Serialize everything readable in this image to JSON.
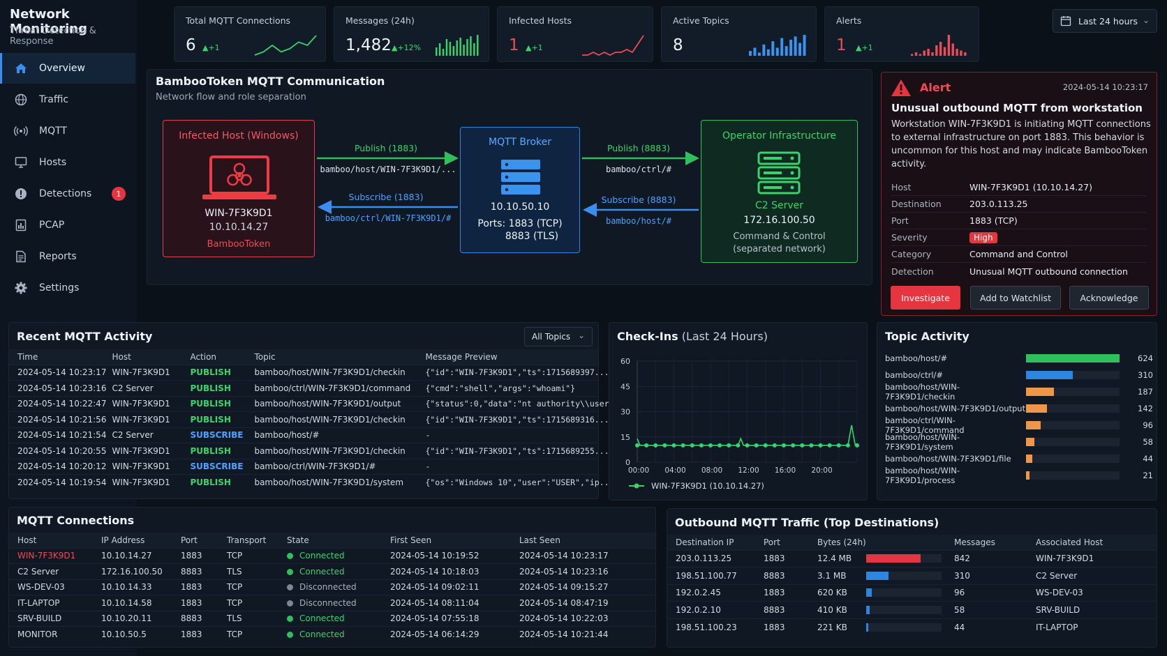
{
  "app": {
    "title": "Network Monitoring",
    "subtitle": "Threat Detection & Response"
  },
  "nav": [
    {
      "label": "Overview",
      "icon": "home-icon",
      "active": true
    },
    {
      "label": "Traffic",
      "icon": "globe-icon"
    },
    {
      "label": "MQTT",
      "icon": "broadcast-icon"
    },
    {
      "label": "Hosts",
      "icon": "monitor-icon"
    },
    {
      "label": "Detections",
      "icon": "exclamation-icon",
      "badge": "1"
    },
    {
      "label": "PCAP",
      "icon": "pcap-file-icon"
    },
    {
      "label": "Reports",
      "icon": "report-icon"
    },
    {
      "label": "Settings",
      "icon": "gear-icon"
    }
  ],
  "kpis": [
    {
      "label": "Total MQTT Connections",
      "value": "6",
      "delta": "▲+1",
      "spark": "line-green",
      "spark_values": [
        2,
        3,
        5,
        3,
        4,
        6,
        5,
        8
      ]
    },
    {
      "label": "Messages (24h)",
      "value": "1,482",
      "delta": "▲+12%",
      "spark": "bars-green",
      "spark_values": [
        6,
        9,
        5,
        12,
        10,
        7,
        11,
        13,
        8,
        12,
        14,
        9,
        15
      ]
    },
    {
      "label": "Infected Hosts",
      "value": "1",
      "delta": "▲+1",
      "spark": "line-red",
      "spark_values": [
        1,
        1,
        2,
        1,
        2,
        1,
        2,
        2,
        3,
        2,
        5,
        8
      ]
    },
    {
      "label": "Active Topics",
      "value": "8",
      "delta": "",
      "spark": "bars-blue",
      "spark_values": [
        3,
        5,
        2,
        7,
        4,
        9,
        5,
        11,
        6,
        10,
        12,
        8,
        13
      ]
    },
    {
      "label": "Alerts",
      "value": "1",
      "delta": "▲+1",
      "spark": "bars-red",
      "spark_values": [
        1,
        2,
        1,
        3,
        4,
        2,
        6,
        8,
        5,
        12,
        7,
        4,
        3,
        2
      ]
    }
  ],
  "time_range": {
    "label": "Last 24 hours"
  },
  "diagram": {
    "title": "BambooToken MQTT Communication",
    "subtitle": "Network flow and role separation",
    "infected": {
      "title": "Infected Host (Windows)",
      "name": "WIN-7F3K9D1",
      "ip": "10.10.14.27",
      "tag": "BambooToken"
    },
    "broker": {
      "title": "MQTT Broker",
      "ip": "10.10.50.10",
      "ports1": "Ports: 1883 (TCP)",
      "ports2": "8883 (TLS)"
    },
    "operator": {
      "title": "Operator Infrastructure",
      "name": "C2 Server",
      "ip": "172.16.100.50",
      "role1": "Command & Control",
      "role2": "(separated network)"
    },
    "flows": {
      "pub1": {
        "label": "Publish (1883)",
        "topic": "bamboo/host/WIN-7F3K9D1/..."
      },
      "sub1": {
        "label": "Subscribe (1883)",
        "topic": "bamboo/ctrl/WIN-7F3K9D1/#"
      },
      "pub2": {
        "label": "Publish (8883)",
        "topic": "bamboo/ctrl/#"
      },
      "sub2": {
        "label": "Subscribe (8883)",
        "topic": "bamboo/host/#"
      }
    }
  },
  "alert": {
    "label": "Alert",
    "time": "2024-05-14 10:23:17",
    "headline": "Unusual outbound MQTT from workstation",
    "desc_lines": [
      "Workstation WIN-7F3K9D1 is initiating MQTT connections",
      "to external infrastructure on port 1883. This behavior is",
      "uncommon for this host and may indicate BambooToken",
      "activity."
    ],
    "fields": [
      {
        "k": "Host",
        "v": "WIN-7F3K9D1 (10.10.14.27)"
      },
      {
        "k": "Destination",
        "v": "203.0.113.25"
      },
      {
        "k": "Port",
        "v": "1883 (TCP)"
      },
      {
        "k": "Severity",
        "v": "High"
      },
      {
        "k": "Category",
        "v": "Command and Control"
      },
      {
        "k": "Detection",
        "v": "Unusual MQTT outbound connection"
      }
    ],
    "actions": {
      "investigate": "Investigate",
      "watch": "Add to Watchlist",
      "ack": "Acknowledge"
    }
  },
  "activity": {
    "title": "Recent MQTT Activity",
    "filter": "All Topics",
    "columns": [
      "Time",
      "Host",
      "Action",
      "Topic",
      "Message Preview"
    ],
    "rows": [
      [
        "2024-05-14 10:23:17",
        "WIN-7F3K9D1",
        "PUBLISH",
        "bamboo/host/WIN-7F3K9D1/checkin",
        "{\"id\":\"WIN-7F3K9D1\",\"ts\":1715689397..."
      ],
      [
        "2024-05-14 10:23:16",
        "C2 Server",
        "PUBLISH",
        "bamboo/ctrl/WIN-7F3K9D1/command",
        "{\"cmd\":\"shell\",\"args\":\"whoami\"}"
      ],
      [
        "2024-05-14 10:22:47",
        "WIN-7F3K9D1",
        "PUBLISH",
        "bamboo/host/WIN-7F3K9D1/output",
        "{\"status\":0,\"data\":\"nt authority\\\\user..."
      ],
      [
        "2024-05-14 10:21:56",
        "WIN-7F3K9D1",
        "PUBLISH",
        "bamboo/host/WIN-7F3K9D1/checkin",
        "{\"id\":\"WIN-7F3K9D1\",\"ts\":1715689316..."
      ],
      [
        "2024-05-14 10:21:54",
        "C2 Server",
        "SUBSCRIBE",
        "bamboo/host/#",
        "-"
      ],
      [
        "2024-05-14 10:20:55",
        "WIN-7F3K9D1",
        "PUBLISH",
        "bamboo/host/WIN-7F3K9D1/checkin",
        "{\"id\":\"WIN-7F3K9D1\",\"ts\":1715689255..."
      ],
      [
        "2024-05-14 10:20:12",
        "WIN-7F3K9D1",
        "SUBSCRIBE",
        "bamboo/ctrl/WIN-7F3K9D1/#",
        "-"
      ],
      [
        "2024-05-14 10:19:54",
        "WIN-7F3K9D1",
        "PUBLISH",
        "bamboo/host/WIN-7F3K9D1/system",
        "{\"os\":\"Windows 10\",\"user\":\"USER\",\"ip..."
      ]
    ]
  },
  "checkins": {
    "title": "Check-Ins",
    "title_suffix": "(Last 24 Hours)"
  },
  "chart_data": {
    "type": "line",
    "title": "Check-Ins (Last 24 Hours)",
    "xlabel": "",
    "ylabel": "",
    "x_ticks": [
      "00:00",
      "04:00",
      "08:00",
      "12:00",
      "16:00",
      "20:00"
    ],
    "y_ticks": [
      0,
      15,
      30,
      45,
      60
    ],
    "ylim": [
      0,
      60
    ],
    "xlim": [
      0,
      24
    ],
    "series": [
      {
        "name": "WIN-7F3K9D1 (10.10.14.27)",
        "color": "#3ad46c",
        "points": [
          [
            0,
            14
          ],
          [
            0.3,
            10
          ],
          [
            1,
            10
          ],
          [
            2,
            10
          ],
          [
            3,
            10
          ],
          [
            4,
            10
          ],
          [
            5,
            10
          ],
          [
            6,
            10
          ],
          [
            7,
            10
          ],
          [
            8,
            10
          ],
          [
            9,
            10
          ],
          [
            10,
            10
          ],
          [
            11,
            10
          ],
          [
            11.3,
            14
          ],
          [
            11.6,
            10
          ],
          [
            12,
            10
          ],
          [
            13,
            10
          ],
          [
            14,
            10
          ],
          [
            15,
            10
          ],
          [
            16,
            10
          ],
          [
            17,
            10
          ],
          [
            18,
            10
          ],
          [
            19,
            10
          ],
          [
            20,
            10
          ],
          [
            21,
            10
          ],
          [
            22,
            10
          ],
          [
            23,
            10
          ],
          [
            23.4,
            22
          ],
          [
            23.8,
            10
          ],
          [
            24,
            10
          ]
        ],
        "markers": [
          0,
          1,
          2,
          3,
          4,
          5,
          6,
          7,
          8,
          9,
          10,
          11,
          12,
          13,
          14,
          15,
          16,
          17,
          18,
          19,
          20,
          21,
          22,
          23,
          24
        ]
      }
    ],
    "grid": true,
    "legend": "bottom-left"
  },
  "topics": {
    "title": "Topic Activity",
    "items": [
      {
        "name": "bamboo/host/#",
        "count": 624,
        "color": "#2fbf5d"
      },
      {
        "name": "bamboo/ctrl/#",
        "count": 310,
        "color": "#2f86e0"
      },
      {
        "name": "bamboo/host/WIN-7F3K9D1/checkin",
        "count": 187,
        "color": "#f0964a"
      },
      {
        "name": "bamboo/host/WIN-7F3K9D1/output",
        "count": 142,
        "color": "#f0964a"
      },
      {
        "name": "bamboo/ctrl/WIN-7F3K9D1/command",
        "count": 96,
        "color": "#f0964a"
      },
      {
        "name": "bamboo/host/WIN-7F3K9D1/system",
        "count": 58,
        "color": "#f0964a"
      },
      {
        "name": "bamboo/host/WIN-7F3K9D1/file",
        "count": 44,
        "color": "#f0964a"
      },
      {
        "name": "bamboo/host/WIN-7F3K9D1/process",
        "count": 21,
        "color": "#f0964a"
      }
    ],
    "max": 624
  },
  "connections": {
    "title": "MQTT Connections",
    "columns": [
      "Host",
      "IP Address",
      "Port",
      "Transport",
      "State",
      "First Seen",
      "Last Seen"
    ],
    "rows": [
      {
        "host": "WIN-7F3K9D1",
        "ip": "10.10.14.27",
        "port": "1883",
        "transport": "TCP",
        "state": "Connected",
        "first": "2024-05-14 10:19:52",
        "last": "2024-05-14 10:23:17",
        "flag": true
      },
      {
        "host": "C2 Server",
        "ip": "172.16.100.50",
        "port": "8883",
        "transport": "TLS",
        "state": "Connected",
        "first": "2024-05-14 10:18:03",
        "last": "2024-05-14 10:23:16"
      },
      {
        "host": "WS-DEV-03",
        "ip": "10.10.14.33",
        "port": "1883",
        "transport": "TCP",
        "state": "Disconnected",
        "first": "2024-05-14 09:02:11",
        "last": "2024-05-14 09:15:27"
      },
      {
        "host": "IT-LAPTOP",
        "ip": "10.10.14.58",
        "port": "1883",
        "transport": "TCP",
        "state": "Disconnected",
        "first": "2024-05-14 08:11:04",
        "last": "2024-05-14 08:47:19"
      },
      {
        "host": "SRV-BUILD",
        "ip": "10.10.20.11",
        "port": "8883",
        "transport": "TLS",
        "state": "Connected",
        "first": "2024-05-14 07:55:18",
        "last": "2024-05-14 10:22:03"
      },
      {
        "host": "MONITOR",
        "ip": "10.10.50.5",
        "port": "1883",
        "transport": "TCP",
        "state": "Connected",
        "first": "2024-05-14 06:14:29",
        "last": "2024-05-14 10:21:44"
      }
    ]
  },
  "outbound": {
    "title": "Outbound MQTT Traffic (Top Destinations)",
    "columns": [
      "Destination IP",
      "Port",
      "Bytes (24h)",
      "Messages",
      "Associated Host"
    ],
    "rows": [
      {
        "ip": "203.0.113.25",
        "port": "1883",
        "bytes": "12.4 MB",
        "frac": 0.72,
        "color": "#e5363f",
        "messages": "842",
        "host": "WIN-7F3K9D1"
      },
      {
        "ip": "198.51.100.77",
        "port": "8883",
        "bytes": "3.1 MB",
        "frac": 0.3,
        "color": "#2f86e0",
        "messages": "310",
        "host": "C2 Server"
      },
      {
        "ip": "192.0.2.45",
        "port": "1883",
        "bytes": "620 KB",
        "frac": 0.07,
        "color": "#2f86e0",
        "messages": "96",
        "host": "WS-DEV-03"
      },
      {
        "ip": "192.0.2.10",
        "port": "8883",
        "bytes": "410 KB",
        "frac": 0.05,
        "color": "#2f86e0",
        "messages": "58",
        "host": "SRV-BUILD"
      },
      {
        "ip": "198.51.100.23",
        "port": "1883",
        "bytes": "221 KB",
        "frac": 0.03,
        "color": "#2f86e0",
        "messages": "44",
        "host": "IT-LAPTOP"
      }
    ]
  }
}
